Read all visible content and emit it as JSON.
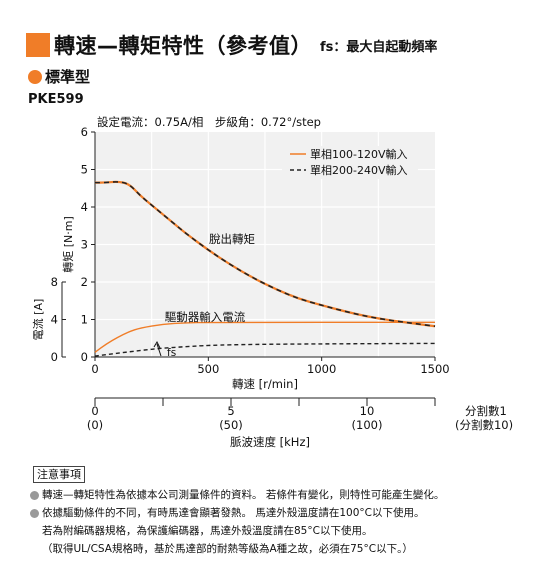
{
  "header": {
    "title": "轉速—轉矩特性（參考值）",
    "fs_note": "fs：最大自起動頻率",
    "accent_color": "#f07d28"
  },
  "subheader": {
    "label": "標準型",
    "model": "PKE599"
  },
  "settings_text": "設定電流：0.75A/相　步級角：0.72°/step",
  "chart_data": {
    "type": "line",
    "x": [
      0,
      50,
      100,
      150,
      200,
      250,
      300,
      350,
      400,
      500,
      600,
      700,
      800,
      900,
      1000,
      1100,
      1200,
      1300,
      1400,
      1500
    ],
    "torque_series": [
      {
        "name": "單相100-120V輸入",
        "color": "#f07d28",
        "style": "solid",
        "values": [
          4.65,
          4.65,
          4.68,
          4.62,
          4.3,
          4.05,
          3.8,
          3.55,
          3.3,
          2.85,
          2.45,
          2.1,
          1.8,
          1.55,
          1.38,
          1.22,
          1.08,
          0.98,
          0.9,
          0.82
        ]
      },
      {
        "name": "單相200-240V輸入",
        "color": "#222222",
        "style": "dashed",
        "values": [
          4.65,
          4.65,
          4.68,
          4.62,
          4.3,
          4.05,
          3.8,
          3.55,
          3.3,
          2.85,
          2.45,
          2.1,
          1.8,
          1.55,
          1.38,
          1.22,
          1.08,
          0.98,
          0.9,
          0.82
        ]
      }
    ],
    "current_series": [
      {
        "name": "單相100-120V輸入",
        "color": "#f07d28",
        "style": "solid",
        "x": [
          0,
          50,
          100,
          150,
          200,
          300,
          400,
          500,
          1500
        ],
        "values": [
          0.5,
          1.4,
          2.1,
          2.7,
          3.1,
          3.5,
          3.65,
          3.7,
          3.7
        ]
      },
      {
        "name": "單相200-240V輸入",
        "color": "#222222",
        "style": "dashed",
        "x": [
          0,
          100,
          200,
          300,
          400,
          500,
          700,
          1000,
          1500
        ],
        "values": [
          0.1,
          0.4,
          0.7,
          0.95,
          1.1,
          1.25,
          1.35,
          1.4,
          1.45
        ]
      }
    ],
    "fs_point": {
      "x": 300,
      "label": "fs"
    },
    "annotations": {
      "torque_curve": "脫出轉矩",
      "current_curve": "驅動器輸入電流"
    },
    "xlim": [
      0,
      1500
    ],
    "xticks": [
      "0",
      "500",
      "1000",
      "1500"
    ],
    "xlabel": "轉速 [r/min]",
    "torque_ylim": [
      0,
      6
    ],
    "torque_yticks": [
      "0",
      "1",
      "2",
      "3",
      "4",
      "5",
      "6"
    ],
    "torque_ylabel": "轉矩 [N·m]",
    "current_ylim": [
      0,
      8
    ],
    "current_yticks": [
      "0",
      "4",
      "8"
    ],
    "current_ylabel": "電流 [A]",
    "pulse_axis": {
      "ticks": [
        0,
        5,
        10
      ],
      "row1": [
        "0",
        "5",
        "10"
      ],
      "row2": [
        "(0)",
        "(50)",
        "(100)"
      ],
      "max": 12.5,
      "label": "脈波速度 [kHz]",
      "side_label_1": "分割數1",
      "side_label_2": "(分割數10)"
    },
    "grid": true,
    "legend_position": "top-right"
  },
  "notes": {
    "title": "注意事項",
    "lines": [
      "轉速—轉矩特性為依據本公司測量條件的資料。 若條件有變化，則特性可能產生變化。",
      "依據驅動條件的不同，有時馬達會顯著發熱。 馬達外殼溫度請在100°C以下使用。",
      "若為附編碼器規格，為保護編碼器，馬達外殼溫度請在85°C以下使用。",
      "（取得UL/CSA規格時，基於馬達部的耐熱等級為A種之故，必須在75°C以下。）"
    ]
  }
}
